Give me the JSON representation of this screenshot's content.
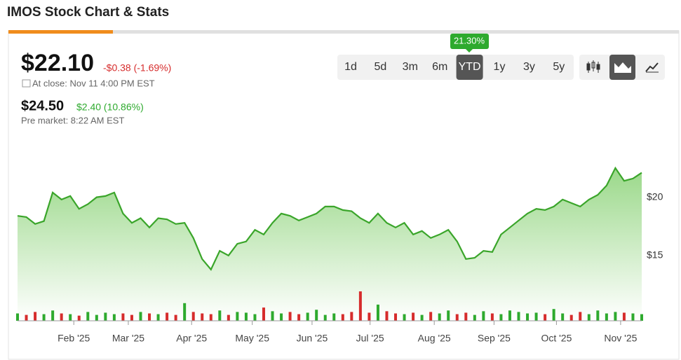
{
  "header": {
    "title": "IMOS Stock Chart & Stats"
  },
  "quote": {
    "price": "$22.10",
    "change": "-$0.38 (-1.69%)",
    "close_note": "At close: Nov 11 4:00 PM EST",
    "pre_price": "$24.50",
    "pre_change": "$2.40 (10.86%)",
    "pre_note": "Pre market: 8:22 AM EST"
  },
  "ranges": [
    "1d",
    "5d",
    "3m",
    "6m",
    "YTD",
    "1y",
    "3y",
    "5y"
  ],
  "selected_range": "YTD",
  "range_return": "21.30%",
  "chart_data": {
    "type": "area",
    "series": [
      {
        "name": "Price",
        "color": "#3aa52a",
        "values": [
          18.4,
          18.3,
          17.7,
          17.95,
          20.4,
          19.8,
          20.1,
          19.0,
          19.4,
          20.0,
          20.1,
          20.4,
          18.6,
          17.8,
          18.2,
          17.4,
          18.2,
          18.1,
          17.7,
          17.8,
          16.5,
          14.7,
          13.8,
          15.4,
          15.0,
          16.0,
          16.2,
          17.2,
          16.8,
          17.8,
          18.6,
          18.4,
          18.0,
          18.3,
          18.6,
          19.2,
          19.2,
          18.9,
          18.8,
          18.2,
          17.8,
          18.6,
          17.8,
          17.4,
          17.8,
          16.8,
          17.1,
          16.5,
          16.8,
          17.2,
          16.2,
          14.7,
          14.8,
          15.4,
          15.3,
          16.8,
          17.4,
          18.0,
          18.6,
          19.0,
          18.9,
          19.2,
          19.8,
          19.5,
          19.2,
          19.8,
          20.2,
          21.0,
          22.5,
          21.4,
          21.6,
          22.1
        ]
      },
      {
        "name": "Volume",
        "values": [
          10,
          8,
          12,
          9,
          14,
          10,
          9,
          7,
          12,
          8,
          11,
          9,
          10,
          8,
          12,
          10,
          9,
          11,
          8,
          24,
          12,
          10,
          9,
          14,
          8,
          12,
          11,
          9,
          18,
          13,
          10,
          12,
          9,
          11,
          15,
          8,
          10,
          9,
          12,
          40,
          11,
          22,
          13,
          10,
          9,
          11,
          8,
          12,
          10,
          14,
          9,
          11,
          8,
          13,
          10,
          9,
          14,
          12,
          10,
          11,
          9,
          16,
          10,
          8,
          12,
          9,
          14,
          10,
          12,
          11,
          10,
          9
        ]
      }
    ],
    "xlim": [
      0,
      71
    ],
    "xticks": [
      {
        "value": 6.4,
        "label": "Feb '25"
      },
      {
        "value": 12.6,
        "label": "Mar '25"
      },
      {
        "value": 19.8,
        "label": "Apr '25"
      },
      {
        "value": 26.7,
        "label": "May '25"
      },
      {
        "value": 33.5,
        "label": "Jun '25"
      },
      {
        "value": 40.1,
        "label": "Jul '25"
      },
      {
        "value": 47.4,
        "label": "Aug '25"
      },
      {
        "value": 54.2,
        "label": "Sep '25"
      },
      {
        "value": 61.3,
        "label": "Oct '25"
      },
      {
        "value": 68.6,
        "label": "Nov '25"
      }
    ],
    "ylim": [
      9.4,
      25.5
    ],
    "yticks": [
      {
        "value": 15,
        "label": "$15"
      },
      {
        "value": 20,
        "label": "$20"
      }
    ],
    "up_color": "#2eaa2e",
    "down_color": "#d62c2c"
  }
}
